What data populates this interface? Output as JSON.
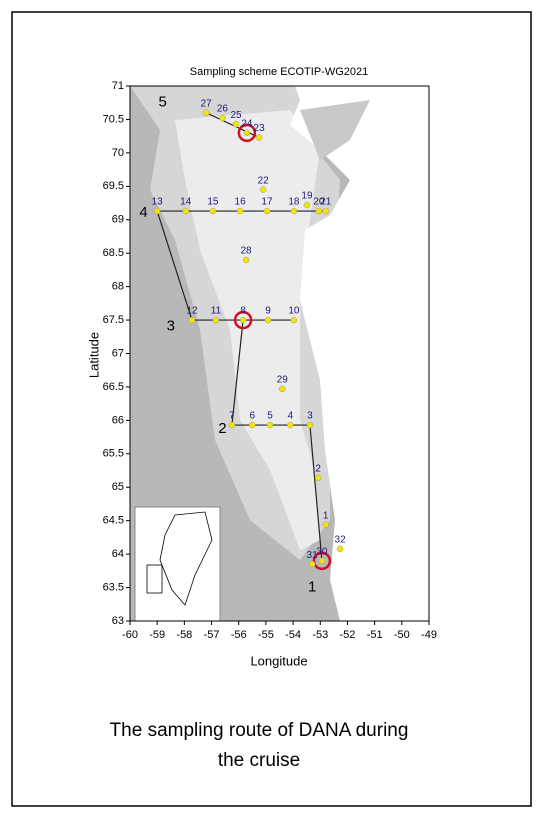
{
  "chart_data": {
    "type": "map",
    "title": "Sampling scheme ECOTIP-WG2021",
    "x_label": "Longitude",
    "y_label": "Latitude",
    "xlim": [
      -60,
      -49
    ],
    "ylim": [
      63,
      71
    ],
    "xticks": [
      -60,
      -59,
      -58,
      -57,
      -56,
      -55,
      -54,
      -53,
      -52,
      -51,
      -50,
      -49
    ],
    "yticks": [
      63,
      63.5,
      64,
      64.5,
      65,
      65.5,
      66,
      66.5,
      67,
      67.5,
      68,
      68.5,
      69,
      69.5,
      70,
      70.5,
      71
    ],
    "stations": [
      {
        "label": "27",
        "lon": -57.2,
        "lat": 70.6
      },
      {
        "label": "26",
        "lon": -56.6,
        "lat": 70.52
      },
      {
        "label": "25",
        "lon": -56.1,
        "lat": 70.43
      },
      {
        "label": "24",
        "lon": -55.7,
        "lat": 70.3,
        "highlighted": true
      },
      {
        "label": "23",
        "lon": -55.25,
        "lat": 70.23
      },
      {
        "label": "22",
        "lon": -55.1,
        "lat": 69.45
      },
      {
        "label": "13",
        "lon": -59.0,
        "lat": 69.13
      },
      {
        "label": "14",
        "lon": -57.95,
        "lat": 69.13
      },
      {
        "label": "15",
        "lon": -56.95,
        "lat": 69.13
      },
      {
        "label": "16",
        "lon": -55.95,
        "lat": 69.13
      },
      {
        "label": "17",
        "lon": -54.96,
        "lat": 69.13
      },
      {
        "label": "18",
        "lon": -53.97,
        "lat": 69.13
      },
      {
        "label": "19",
        "lon": -53.49,
        "lat": 69.22
      },
      {
        "label": "20",
        "lon": -53.05,
        "lat": 69.13
      },
      {
        "label": "21",
        "lon": -52.8,
        "lat": 69.13
      },
      {
        "label": "28",
        "lon": -55.73,
        "lat": 68.4
      },
      {
        "label": "12",
        "lon": -57.72,
        "lat": 67.5
      },
      {
        "label": "11",
        "lon": -56.84,
        "lat": 67.5
      },
      {
        "label": "8",
        "lon": -55.84,
        "lat": 67.5,
        "highlighted": true
      },
      {
        "label": "9",
        "lon": -54.92,
        "lat": 67.5
      },
      {
        "label": "10",
        "lon": -53.97,
        "lat": 67.5
      },
      {
        "label": "29",
        "lon": -54.4,
        "lat": 66.47
      },
      {
        "label": "7",
        "lon": -56.25,
        "lat": 65.93
      },
      {
        "label": "6",
        "lon": -55.5,
        "lat": 65.93
      },
      {
        "label": "5",
        "lon": -54.85,
        "lat": 65.93
      },
      {
        "label": "4",
        "lon": -54.1,
        "lat": 65.93
      },
      {
        "label": "3",
        "lon": -53.38,
        "lat": 65.93
      },
      {
        "label": "2",
        "lon": -53.08,
        "lat": 65.14
      },
      {
        "label": "1",
        "lon": -52.8,
        "lat": 64.44
      },
      {
        "label": "30",
        "lon": -52.94,
        "lat": 63.9,
        "highlighted": true
      },
      {
        "label": "31",
        "lon": -53.3,
        "lat": 63.85
      },
      {
        "label": "32",
        "lon": -52.27,
        "lat": 64.08
      }
    ],
    "regions": [
      {
        "label": "1",
        "lon": -53.3,
        "lat": 63.5
      },
      {
        "label": "2",
        "lon": -56.6,
        "lat": 65.87
      },
      {
        "label": "3",
        "lon": -58.5,
        "lat": 67.4
      },
      {
        "label": "4",
        "lon": -59.5,
        "lat": 69.1
      },
      {
        "label": "5",
        "lon": -58.8,
        "lat": 70.75
      }
    ],
    "caption": [
      "The sampling route of DANA during",
      "the cruise"
    ]
  }
}
